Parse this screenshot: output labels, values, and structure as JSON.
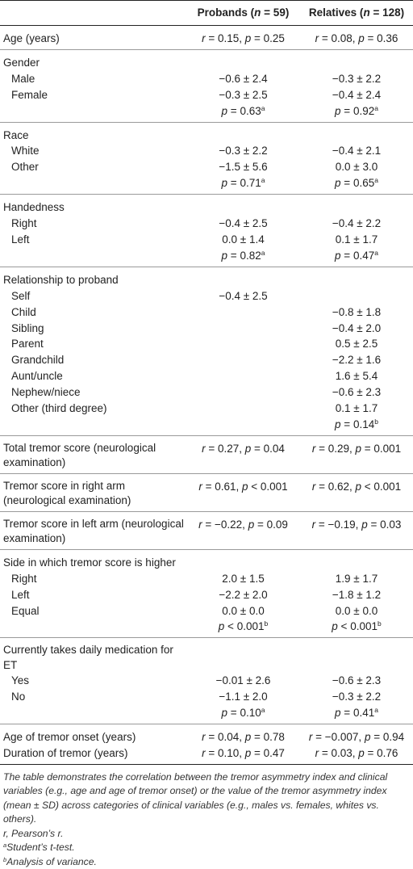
{
  "header": {
    "col0": "",
    "probands_label": "Probands (",
    "probands_n": "n",
    "probands_eq": " = 59)",
    "relatives_label": "Relatives (",
    "relatives_n": "n",
    "relatives_eq": " = 128)"
  },
  "rows": {
    "age": {
      "label": "Age (years)",
      "p": "0.15, ",
      "p2": "0.25",
      "r": "0.08, ",
      "r2": "0.36"
    },
    "gender": {
      "label": "Gender",
      "male": "Male",
      "female": "Female",
      "male_p": "−0.6 ± 2.4",
      "male_r": "−0.3 ± 2.2",
      "female_p": "−0.3 ± 2.5",
      "female_r": "−0.4 ± 2.4",
      "pval_p": "0.63",
      "pval_r": "0.92",
      "sup": "a"
    },
    "race": {
      "label": "Race",
      "white": "White",
      "other": "Other",
      "white_p": "−0.3 ± 2.2",
      "white_r": "−0.4 ± 2.1",
      "other_p": "−1.5 ± 5.6",
      "other_r": "0.0 ± 3.0",
      "pval_p": "0.71",
      "pval_r": "0.65",
      "sup": "a"
    },
    "hand": {
      "label": "Handedness",
      "right": "Right",
      "left": "Left",
      "right_p": "−0.4 ± 2.5",
      "right_r": "−0.4 ± 2.2",
      "left_p": "0.0 ± 1.4",
      "left_r": "0.1 ± 1.7",
      "pval_p": "0.82",
      "pval_r": "0.47",
      "sup": "a"
    },
    "rel": {
      "label": "Relationship to proband",
      "self": "Self",
      "self_p": "−0.4 ± 2.5",
      "child": "Child",
      "child_r": "−0.8 ± 1.8",
      "sibling": "Sibling",
      "sibling_r": "−0.4 ± 2.0",
      "parent": "Parent",
      "parent_r": "0.5 ± 2.5",
      "grandchild": "Grandchild",
      "grandchild_r": "−2.2 ± 1.6",
      "aunt": "Aunt/uncle",
      "aunt_r": "1.6 ± 5.4",
      "nephew": "Nephew/niece",
      "nephew_r": "−0.6 ± 2.3",
      "other": "Other (third degree)",
      "other_r": "0.1 ± 1.7",
      "pval_r": "0.14",
      "sup": "b"
    },
    "total": {
      "label": "Total tremor score (neurological examination)",
      "p": "0.27, ",
      "p2": "0.04",
      "r": "0.29, ",
      "r2": "0.001"
    },
    "rightarm": {
      "label": "Tremor score in right arm (neurological examination)",
      "p": "0.61, ",
      "p2": "0.001",
      "r": "0.62, ",
      "r2": "0.001"
    },
    "leftarm": {
      "label": "Tremor score in left arm (neurological examination)",
      "p": "−0.22, ",
      "p2": "0.09",
      "r": "−0.19, ",
      "r2": "0.03"
    },
    "side": {
      "label": "Side in which tremor score is higher",
      "right": "Right",
      "right_p": "2.0 ± 1.5",
      "right_r": "1.9 ± 1.7",
      "left": "Left",
      "left_p": "−2.2 ± 2.0",
      "left_r": "−1.8 ± 1.2",
      "equal": "Equal",
      "equal_p": "0.0 ± 0.0",
      "equal_r": "0.0 ± 0.0",
      "pval_p": "0.001",
      "pval_r": "0.001",
      "sup": "b"
    },
    "med": {
      "label": "Currently takes daily medication for ET",
      "yes": "Yes",
      "yes_p": "−0.01 ± 2.6",
      "yes_r": "−0.6 ± 2.3",
      "no": "No",
      "no_p": "−1.1 ± 2.0",
      "no_r": "−0.3 ± 2.2",
      "pval_p": "0.10",
      "pval_r": "0.41",
      "sup": "a"
    },
    "onset": {
      "label": "Age of tremor onset (years)",
      "p": "0.04, ",
      "p2": "0.78",
      "r": "−0.007, ",
      "r2": "0.94"
    },
    "duration": {
      "label": "Duration of tremor (years)",
      "p": "0.10, ",
      "p2": "0.47",
      "r": "0.03, ",
      "r2": "0.76"
    }
  },
  "symbols": {
    "r": "r",
    "p": "p",
    "eq": " = ",
    "lt": " < "
  },
  "footnotes": {
    "main": "The table demonstrates the correlation between the tremor asymmetry index and clinical variables (e.g., age and age of tremor onset) or the value of the tremor asymmetry index (mean ± SD) across categories of clinical variables (e.g., males vs. females, whites vs. others).",
    "r_def": "r, Pearson’s r.",
    "a_sup": "a",
    "a_text": "Student’s t-test.",
    "b_sup": "b",
    "b_text": "Analysis of variance."
  }
}
